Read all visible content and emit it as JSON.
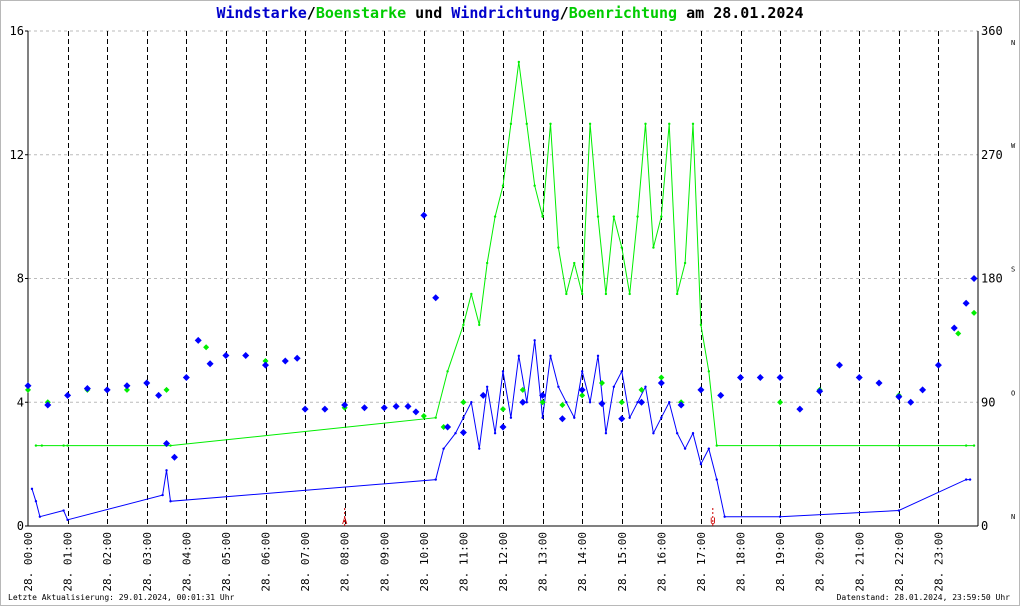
{
  "title": {
    "part1": "Windstarke",
    "sep1": "/",
    "part2": "Boenstarke",
    "part3": " und ",
    "part4": "Windrichtung",
    "sep2": "/",
    "part5": "Boenrichtung",
    "part6": " am 28.01.2024"
  },
  "footer": {
    "left": "Letzte Aktualisierung: 29.01.2024, 00:01:31 Uhr",
    "right": "Datenstand: 28.01.2024, 23:59:50 Uhr"
  },
  "colors": {
    "wind": "#0000ff",
    "gust": "#00ee00",
    "sun_marker": "#cc0000",
    "grid": "#bbbbbb"
  },
  "chart_data": {
    "type": "line",
    "x_unit": "hour of day",
    "xlim": [
      0,
      24
    ],
    "ylim": [
      0,
      16
    ],
    "y_ticks": [
      "0",
      "4",
      "8",
      "12",
      "16"
    ],
    "y2lim": [
      0,
      360
    ],
    "y2_ticks": [
      "0",
      "90",
      "180",
      "270",
      "360"
    ],
    "y2_direction_labels": [
      {
        "value": 0,
        "label": "N"
      },
      {
        "value": 90,
        "label": "O"
      },
      {
        "value": 180,
        "label": "S"
      },
      {
        "value": 270,
        "label": "W"
      },
      {
        "value": 360,
        "label": "N"
      }
    ],
    "x_tick_labels": [
      "28. 00:00",
      "28. 01:00",
      "28. 02:00",
      "28. 03:00",
      "28. 04:00",
      "28. 05:00",
      "28. 06:00",
      "28. 07:00",
      "28. 08:00",
      "28. 09:00",
      "28. 10:00",
      "28. 11:00",
      "28. 12:00",
      "28. 13:00",
      "28. 14:00",
      "28. 15:00",
      "28. 16:00",
      "28. 17:00",
      "28. 18:00",
      "28. 19:00",
      "28. 20:00",
      "28. 21:00",
      "28. 22:00",
      "28. 23:00"
    ],
    "sunrise_hour": 8.0,
    "sunset_hour": 17.3,
    "sun_labels": {
      "sunrise": "A",
      "sunset": "U"
    },
    "series": [
      {
        "name": "Windstarke",
        "color": "#0000ff",
        "hours": [
          0.1,
          0.2,
          0.3,
          0.9,
          1.0,
          3.4,
          3.5,
          3.6,
          10.3,
          10.5,
          10.8,
          11.0,
          11.2,
          11.4,
          11.6,
          11.8,
          12.0,
          12.2,
          12.4,
          12.6,
          12.8,
          13.0,
          13.2,
          13.4,
          13.6,
          13.8,
          14.0,
          14.2,
          14.4,
          14.6,
          14.8,
          15.0,
          15.2,
          15.4,
          15.6,
          15.8,
          16.0,
          16.2,
          16.4,
          16.6,
          16.8,
          17.0,
          17.2,
          17.4,
          17.6,
          19.0,
          22.0,
          23.7,
          23.8
        ],
        "values": [
          1.2,
          0.8,
          0.3,
          0.5,
          0.2,
          1.0,
          1.8,
          0.8,
          1.5,
          2.5,
          3.0,
          3.5,
          4.0,
          2.5,
          4.5,
          3.0,
          5.0,
          3.5,
          5.5,
          4.0,
          6.0,
          3.5,
          5.5,
          4.5,
          4.0,
          3.5,
          5.0,
          4.0,
          5.5,
          3.0,
          4.5,
          5.0,
          3.5,
          4.0,
          4.5,
          3.0,
          3.5,
          4.0,
          3.0,
          2.5,
          3.0,
          2.0,
          2.5,
          1.5,
          0.3,
          0.3,
          0.5,
          1.5,
          1.5
        ]
      },
      {
        "name": "Boenstarke",
        "color": "#00ee00",
        "hours": [
          0.2,
          0.35,
          0.9,
          1.0,
          3.5,
          3.6,
          10.3,
          10.6,
          11.0,
          11.2,
          11.4,
          11.6,
          11.8,
          12.0,
          12.2,
          12.4,
          12.6,
          12.8,
          13.0,
          13.2,
          13.4,
          13.6,
          13.8,
          14.0,
          14.2,
          14.4,
          14.6,
          14.8,
          15.0,
          15.2,
          15.4,
          15.6,
          15.8,
          16.0,
          16.2,
          16.4,
          16.6,
          16.8,
          17.0,
          17.2,
          17.4,
          19.0,
          22.0,
          23.7,
          23.9
        ],
        "values": [
          2.6,
          2.6,
          2.6,
          2.6,
          2.6,
          2.6,
          3.5,
          5.0,
          6.5,
          7.5,
          6.5,
          8.5,
          10.0,
          11.0,
          13.0,
          15.0,
          13.0,
          11.0,
          10.0,
          13.0,
          9.0,
          7.5,
          8.5,
          7.5,
          13.0,
          10.0,
          7.5,
          10.0,
          9.0,
          7.5,
          10.0,
          13.0,
          9.0,
          10.0,
          13.0,
          7.5,
          8.5,
          13.0,
          6.5,
          5.0,
          2.6,
          2.6,
          2.6,
          2.6,
          2.6
        ]
      },
      {
        "name": "Windrichtung",
        "color": "#0000ff",
        "hours": [
          0.0,
          0.5,
          1.0,
          1.5,
          2.0,
          2.5,
          3.0,
          3.3,
          3.5,
          3.7,
          4.0,
          4.3,
          4.6,
          5.0,
          5.5,
          6.0,
          6.5,
          6.8,
          7.0,
          7.5,
          8.0,
          8.5,
          9.0,
          9.3,
          9.6,
          9.8,
          10.0,
          10.3,
          10.6,
          11.0,
          11.5,
          12.0,
          12.5,
          13.0,
          13.5,
          14.0,
          14.5,
          15.0,
          15.5,
          16.0,
          16.5,
          17.0,
          17.5,
          18.0,
          18.5,
          19.0,
          19.5,
          20.0,
          20.5,
          21.0,
          21.5,
          22.0,
          22.3,
          22.6,
          23.0,
          23.4,
          23.7,
          23.9
        ],
        "values": [
          102,
          88,
          95,
          100,
          99,
          102,
          104,
          95,
          60,
          50,
          108,
          135,
          118,
          124,
          124,
          117,
          120,
          122,
          85,
          85,
          88,
          86,
          86,
          87,
          87,
          83,
          226,
          166,
          72,
          68,
          95,
          72,
          90,
          95,
          78,
          99,
          89,
          78,
          90,
          104,
          88,
          99,
          95,
          108,
          108,
          108,
          85,
          98,
          117,
          108,
          104,
          94,
          90,
          99,
          117,
          144,
          162,
          180
        ]
      },
      {
        "name": "Boenrichtung",
        "color": "#00ee00",
        "hours": [
          0.0,
          0.5,
          1.0,
          1.5,
          2.0,
          2.5,
          3.0,
          3.5,
          4.0,
          4.5,
          5.0,
          6.0,
          7.0,
          8.0,
          9.0,
          10.0,
          10.5,
          11.0,
          11.5,
          12.0,
          12.5,
          13.0,
          13.5,
          14.0,
          14.5,
          15.0,
          15.5,
          16.0,
          16.5,
          17.0,
          17.5,
          18.0,
          19.0,
          20.0,
          21.0,
          22.0,
          23.0,
          23.5,
          23.9
        ],
        "values": [
          99,
          90,
          95,
          99,
          99,
          99,
          104,
          99,
          108,
          130,
          124,
          120,
          85,
          86,
          86,
          80,
          72,
          90,
          95,
          85,
          99,
          90,
          88,
          95,
          104,
          90,
          99,
          108,
          90,
          99,
          95,
          108,
          90,
          99,
          108,
          95,
          117,
          140,
          155
        ]
      }
    ],
    "grid": true
  }
}
